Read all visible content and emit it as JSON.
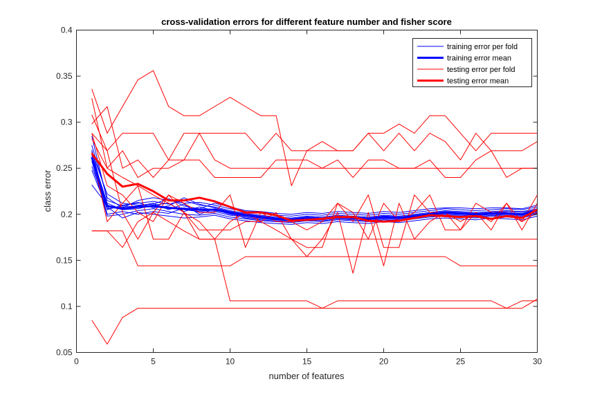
{
  "chart_data": {
    "type": "line",
    "title": "cross-validation errors for different feature number and fisher score",
    "xlabel": "number of features",
    "ylabel": "class error",
    "xlim": [
      0,
      30
    ],
    "ylim": [
      0.05,
      0.4
    ],
    "xticks": [
      0,
      5,
      10,
      15,
      20,
      25,
      30
    ],
    "yticks": [
      0.05,
      0.1,
      0.15,
      0.2,
      0.25,
      0.3,
      0.35,
      0.4
    ],
    "xtick_labels": [
      "0",
      "5",
      "10",
      "15",
      "20",
      "25",
      "30"
    ],
    "ytick_labels": [
      "0.05",
      "0.1",
      "0.15",
      "0.2",
      "0.25",
      "0.3",
      "0.35",
      "0.4"
    ],
    "grid": false,
    "legend_position": "top-right",
    "legend": [
      {
        "label": "training error per fold",
        "color": "#0000ff",
        "width": "thin"
      },
      {
        "label": "training error mean",
        "color": "#0000ff",
        "width": "thick"
      },
      {
        "label": "testing error per fold",
        "color": "#ff0000",
        "width": "thin"
      },
      {
        "label": "testing error mean",
        "color": "#ff0000",
        "width": "thick"
      }
    ],
    "colors": {
      "training": "#0000ff",
      "testing": "#ff0000",
      "axes": "#262626"
    },
    "x": [
      1,
      2,
      3,
      4,
      5,
      6,
      7,
      8,
      9,
      10,
      11,
      12,
      13,
      14,
      15,
      16,
      17,
      18,
      19,
      20,
      21,
      22,
      23,
      24,
      25,
      26,
      27,
      28,
      29,
      30
    ],
    "series": [
      {
        "group": "training",
        "style": "fold",
        "values": [
          0.264,
          0.212,
          0.205,
          0.208,
          0.21,
          0.207,
          0.205,
          0.203,
          0.205,
          0.2,
          0.198,
          0.196,
          0.195,
          0.194,
          0.196,
          0.195,
          0.197,
          0.196,
          0.195,
          0.197,
          0.196,
          0.198,
          0.2,
          0.201,
          0.2,
          0.199,
          0.201,
          0.2,
          0.199,
          0.203
        ]
      },
      {
        "group": "training",
        "style": "fold",
        "values": [
          0.27,
          0.205,
          0.21,
          0.212,
          0.214,
          0.211,
          0.215,
          0.21,
          0.208,
          0.204,
          0.201,
          0.199,
          0.197,
          0.196,
          0.198,
          0.197,
          0.199,
          0.198,
          0.197,
          0.199,
          0.198,
          0.2,
          0.202,
          0.204,
          0.203,
          0.202,
          0.203,
          0.204,
          0.203,
          0.206
        ]
      },
      {
        "group": "training",
        "style": "fold",
        "values": [
          0.258,
          0.198,
          0.2,
          0.204,
          0.206,
          0.203,
          0.2,
          0.199,
          0.201,
          0.197,
          0.195,
          0.193,
          0.192,
          0.191,
          0.193,
          0.192,
          0.194,
          0.193,
          0.192,
          0.194,
          0.193,
          0.195,
          0.197,
          0.198,
          0.197,
          0.196,
          0.198,
          0.197,
          0.196,
          0.2
        ]
      },
      {
        "group": "training",
        "style": "fold",
        "values": [
          0.275,
          0.218,
          0.207,
          0.215,
          0.218,
          0.215,
          0.212,
          0.213,
          0.21,
          0.206,
          0.203,
          0.201,
          0.199,
          0.198,
          0.2,
          0.199,
          0.201,
          0.2,
          0.199,
          0.201,
          0.2,
          0.202,
          0.204,
          0.206,
          0.205,
          0.204,
          0.205,
          0.206,
          0.205,
          0.208
        ]
      },
      {
        "group": "training",
        "style": "fold",
        "values": [
          0.252,
          0.208,
          0.196,
          0.202,
          0.2,
          0.198,
          0.196,
          0.197,
          0.199,
          0.195,
          0.193,
          0.191,
          0.19,
          0.189,
          0.191,
          0.19,
          0.192,
          0.191,
          0.19,
          0.192,
          0.191,
          0.193,
          0.195,
          0.196,
          0.195,
          0.194,
          0.196,
          0.195,
          0.194,
          0.198
        ]
      },
      {
        "group": "training",
        "style": "fold",
        "values": [
          0.268,
          0.222,
          0.212,
          0.21,
          0.211,
          0.217,
          0.209,
          0.206,
          0.212,
          0.208,
          0.204,
          0.203,
          0.201,
          0.2,
          0.202,
          0.201,
          0.203,
          0.202,
          0.201,
          0.203,
          0.202,
          0.204,
          0.206,
          0.207,
          0.207,
          0.206,
          0.207,
          0.207,
          0.206,
          0.21
        ]
      },
      {
        "group": "training",
        "style": "fold",
        "values": [
          0.232,
          0.21,
          0.205,
          0.206,
          0.21,
          0.212,
          0.203,
          0.208,
          0.204,
          0.201,
          0.196,
          0.194,
          0.193,
          0.192,
          0.194,
          0.193,
          0.195,
          0.194,
          0.193,
          0.195,
          0.194,
          0.196,
          0.198,
          0.199,
          0.198,
          0.197,
          0.199,
          0.198,
          0.197,
          0.201
        ]
      },
      {
        "group": "training",
        "style": "fold",
        "values": [
          0.285,
          0.215,
          0.209,
          0.213,
          0.207,
          0.209,
          0.218,
          0.211,
          0.207,
          0.203,
          0.2,
          0.198,
          0.196,
          0.195,
          0.197,
          0.196,
          0.198,
          0.197,
          0.196,
          0.198,
          0.197,
          0.199,
          0.201,
          0.202,
          0.201,
          0.2,
          0.202,
          0.201,
          0.2,
          0.204
        ]
      },
      {
        "group": "training",
        "style": "fold",
        "values": [
          0.262,
          0.2,
          0.203,
          0.2,
          0.203,
          0.201,
          0.207,
          0.202,
          0.203,
          0.199,
          0.197,
          0.195,
          0.194,
          0.193,
          0.195,
          0.194,
          0.196,
          0.195,
          0.194,
          0.196,
          0.195,
          0.197,
          0.199,
          0.2,
          0.199,
          0.198,
          0.2,
          0.199,
          0.198,
          0.202
        ]
      },
      {
        "group": "training",
        "style": "fold",
        "values": [
          0.248,
          0.206,
          0.208,
          0.209,
          0.212,
          0.205,
          0.211,
          0.2,
          0.206,
          0.202,
          0.199,
          0.197,
          0.196,
          0.195,
          0.197,
          0.196,
          0.198,
          0.197,
          0.196,
          0.198,
          0.197,
          0.199,
          0.201,
          0.203,
          0.202,
          0.201,
          0.202,
          0.203,
          0.202,
          0.205
        ]
      },
      {
        "group": "training",
        "style": "mean",
        "values": [
          0.262,
          0.209,
          0.206,
          0.208,
          0.209,
          0.207,
          0.206,
          0.205,
          0.205,
          0.202,
          0.199,
          0.197,
          0.195,
          0.194,
          0.196,
          0.195,
          0.197,
          0.196,
          0.195,
          0.197,
          0.196,
          0.198,
          0.2,
          0.202,
          0.201,
          0.2,
          0.201,
          0.201,
          0.2,
          0.204
        ]
      },
      {
        "group": "testing",
        "style": "fold",
        "values": [
          0.336,
          0.288,
          0.317,
          0.346,
          0.356,
          0.317,
          0.307,
          0.307,
          0.317,
          0.327,
          0.317,
          0.307,
          0.307,
          0.231,
          0.269,
          0.269,
          0.269,
          0.269,
          0.288,
          0.288,
          0.298,
          0.288,
          0.307,
          0.307,
          0.288,
          0.269,
          0.288,
          0.288,
          0.288,
          0.288
        ]
      },
      {
        "group": "testing",
        "style": "fold",
        "values": [
          0.308,
          0.269,
          0.288,
          0.288,
          0.288,
          0.259,
          0.288,
          0.288,
          0.288,
          0.288,
          0.288,
          0.269,
          0.288,
          0.269,
          0.269,
          0.279,
          0.269,
          0.269,
          0.288,
          0.269,
          0.288,
          0.269,
          0.288,
          0.279,
          0.259,
          0.288,
          0.269,
          0.269,
          0.269,
          0.279
        ]
      },
      {
        "group": "testing",
        "style": "fold",
        "values": [
          0.298,
          0.317,
          0.25,
          0.259,
          0.24,
          0.259,
          0.259,
          0.288,
          0.259,
          0.25,
          0.25,
          0.25,
          0.25,
          0.25,
          0.25,
          0.25,
          0.25,
          0.25,
          0.25,
          0.25,
          0.25,
          0.25,
          0.25,
          0.25,
          0.25,
          0.25,
          0.25,
          0.25,
          0.25,
          0.25
        ]
      },
      {
        "group": "testing",
        "style": "fold",
        "values": [
          0.326,
          0.25,
          0.269,
          0.24,
          0.25,
          0.25,
          0.259,
          0.259,
          0.24,
          0.24,
          0.24,
          0.24,
          0.259,
          0.259,
          0.259,
          0.25,
          0.259,
          0.24,
          0.259,
          0.259,
          0.25,
          0.25,
          0.259,
          0.24,
          0.24,
          0.259,
          0.269,
          0.24,
          0.25,
          0.25
        ]
      },
      {
        "group": "testing",
        "style": "fold",
        "values": [
          0.288,
          0.231,
          0.221,
          0.202,
          0.192,
          0.221,
          0.212,
          0.202,
          0.202,
          0.221,
          0.164,
          0.202,
          0.192,
          0.192,
          0.183,
          0.192,
          0.212,
          0.202,
          0.173,
          0.212,
          0.192,
          0.202,
          0.221,
          0.183,
          0.183,
          0.212,
          0.202,
          0.202,
          0.192,
          0.221
        ]
      },
      {
        "group": "testing",
        "style": "fold",
        "values": [
          0.288,
          0.269,
          0.202,
          0.173,
          0.202,
          0.221,
          0.202,
          0.183,
          0.183,
          0.183,
          0.192,
          0.192,
          0.183,
          0.173,
          0.154,
          0.173,
          0.202,
          0.136,
          0.202,
          0.144,
          0.212,
          0.173,
          0.192,
          0.202,
          0.192,
          0.202,
          0.192,
          0.212,
          0.192,
          0.202
        ]
      },
      {
        "group": "testing",
        "style": "fold",
        "values": [
          0.267,
          0.192,
          0.212,
          0.231,
          0.173,
          0.173,
          0.202,
          0.173,
          0.173,
          0.192,
          0.202,
          0.192,
          0.202,
          0.173,
          0.164,
          0.164,
          0.212,
          0.192,
          0.221,
          0.164,
          0.164,
          0.221,
          0.202,
          0.202,
          0.183,
          0.202,
          0.183,
          0.212,
          0.183,
          0.212
        ]
      },
      {
        "group": "testing",
        "style": "fold",
        "values": [
          0.182,
          0.182,
          0.182,
          0.144,
          0.144,
          0.144,
          0.144,
          0.144,
          0.144,
          0.144,
          0.154,
          0.154,
          0.154,
          0.154,
          0.154,
          0.154,
          0.154,
          0.154,
          0.154,
          0.154,
          0.154,
          0.154,
          0.154,
          0.154,
          0.144,
          0.144,
          0.144,
          0.144,
          0.144,
          0.144
        ]
      },
      {
        "group": "testing",
        "style": "fold",
        "values": [
          0.182,
          0.182,
          0.164,
          0.192,
          0.202,
          0.192,
          0.182,
          0.173,
          0.173,
          0.173,
          0.173,
          0.173,
          0.173,
          0.173,
          0.173,
          0.173,
          0.173,
          0.173,
          0.173,
          0.173,
          0.173,
          0.173,
          0.173,
          0.173,
          0.173,
          0.173,
          0.173,
          0.173,
          0.173,
          0.173
        ]
      },
      {
        "group": "testing",
        "style": "fold",
        "values": [
          0.085,
          0.059,
          0.088,
          0.098,
          0.098,
          0.098,
          0.098,
          0.098,
          0.098,
          0.098,
          0.098,
          0.098,
          0.098,
          0.098,
          0.098,
          0.098,
          0.098,
          0.098,
          0.098,
          0.098,
          0.098,
          0.098,
          0.098,
          0.098,
          0.098,
          0.098,
          0.098,
          0.098,
          0.098,
          0.108
        ]
      },
      {
        "group": "testing",
        "style": "fold",
        "values": [
          0.282,
          0.25,
          0.24,
          0.231,
          0.221,
          0.212,
          0.202,
          0.192,
          0.173,
          0.106,
          0.106,
          0.106,
          0.106,
          0.106,
          0.106,
          0.098,
          0.106,
          0.106,
          0.106,
          0.106,
          0.106,
          0.106,
          0.106,
          0.106,
          0.106,
          0.106,
          0.106,
          0.098,
          0.106,
          0.106
        ]
      },
      {
        "group": "testing",
        "style": "mean",
        "values": [
          0.266,
          0.244,
          0.23,
          0.233,
          0.225,
          0.215,
          0.215,
          0.218,
          0.214,
          0.208,
          0.202,
          0.202,
          0.199,
          0.193,
          0.194,
          0.195,
          0.197,
          0.197,
          0.193,
          0.192,
          0.193,
          0.196,
          0.199,
          0.198,
          0.197,
          0.198,
          0.195,
          0.198,
          0.196,
          0.205
        ]
      }
    ]
  }
}
